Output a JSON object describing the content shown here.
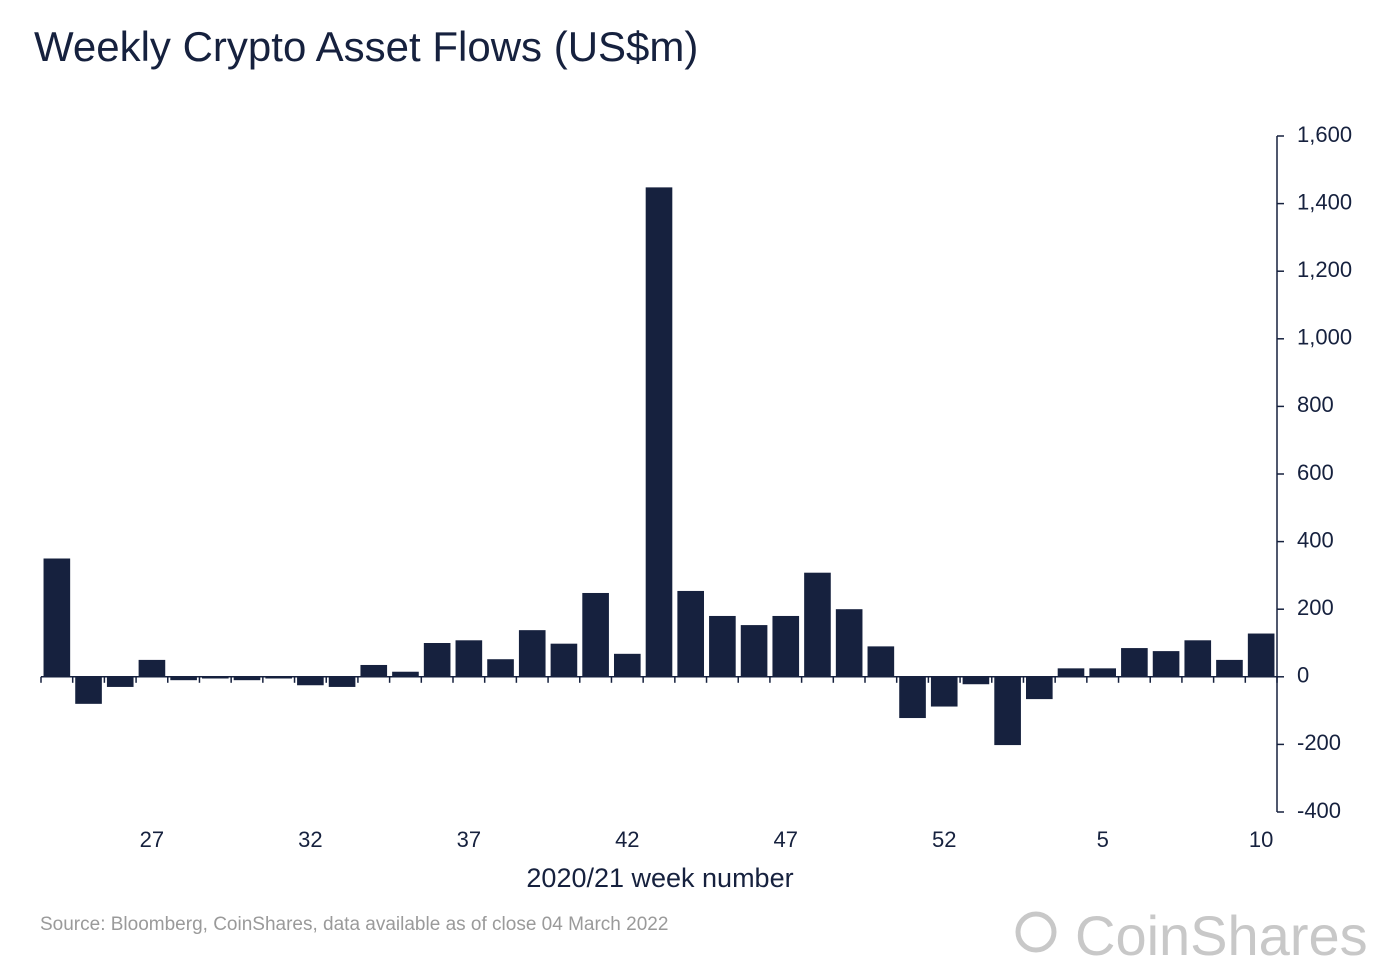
{
  "chart_data": {
    "type": "bar",
    "title": "Weekly Crypto Asset Flows (US$m)",
    "x_label": "2020/21 week number",
    "source": "Source: Bloomberg, CoinShares, data available as of close 04 March 2022",
    "logo": "CoinShares",
    "color": "#16213e",
    "categories": [
      null,
      null,
      null,
      "27",
      null,
      null,
      null,
      null,
      "32",
      null,
      null,
      null,
      null,
      "37",
      null,
      null,
      null,
      null,
      "42",
      null,
      null,
      null,
      null,
      "47",
      null,
      null,
      null,
      null,
      "52",
      null,
      null,
      null,
      null,
      "5",
      null,
      null,
      null,
      null,
      "10"
    ],
    "values": [
      350,
      -80,
      -30,
      50,
      -10,
      -5,
      -10,
      -5,
      -25,
      -30,
      35,
      15,
      100,
      108,
      52,
      138,
      98,
      248,
      68,
      1448,
      254,
      180,
      153,
      180,
      308,
      200,
      90,
      -122,
      -88,
      -22,
      -202,
      -66,
      25,
      25,
      85,
      76,
      108,
      50,
      128
    ],
    "ylim": [
      -400,
      1600
    ],
    "yticks": [
      -400,
      -200,
      0,
      200,
      400,
      600,
      800,
      {
        "value": 1000,
        "label": "1,000"
      },
      {
        "value": 1200,
        "label": "1,200"
      },
      {
        "value": 1400,
        "label": "1,400"
      },
      {
        "value": 1600,
        "label": "1,600"
      }
    ],
    "y_axis_side": "right"
  }
}
